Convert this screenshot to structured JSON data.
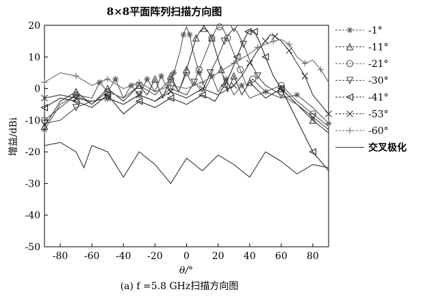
{
  "chart_data": {
    "type": "line",
    "title": "8×8平面阵列扫描方向图",
    "caption": "(a) f =5.8 GHz扫描方向图",
    "xlabel": "θ/°",
    "ylabel": "增益/dBi",
    "xlim": [
      -90,
      90
    ],
    "ylim": [
      -50,
      20
    ],
    "xticks": [
      -80,
      -60,
      -40,
      -20,
      0,
      20,
      40,
      60,
      80
    ],
    "yticks": [
      -50,
      -40,
      -30,
      -20,
      -10,
      0,
      10,
      20
    ],
    "grid": false,
    "legend_position": "right",
    "series": [
      {
        "name": "-1°",
        "marker": "asterisk",
        "color": "#555555",
        "x": [
          -90,
          -80,
          -70,
          -60,
          -55,
          -50,
          -45,
          -40,
          -35,
          -30,
          -25,
          -20,
          -16,
          -12,
          -8,
          -4,
          -2,
          0,
          2,
          4,
          8,
          12,
          16,
          20,
          25,
          30,
          35,
          40,
          50,
          60,
          70,
          80,
          90
        ],
        "y": [
          -13,
          -5,
          -2,
          -3,
          2,
          -1,
          3,
          -3,
          1,
          -2,
          3,
          -1,
          4,
          0,
          5,
          12,
          17,
          19.5,
          17,
          12,
          5,
          0,
          4,
          -1,
          3,
          -2,
          1,
          -3,
          -1,
          -3,
          -2,
          -6,
          -11
        ]
      },
      {
        "name": "-11°",
        "marker": "triangle-up",
        "color": "#333333",
        "x": [
          -90,
          -80,
          -70,
          -60,
          -50,
          -40,
          -30,
          -25,
          -20,
          -15,
          -10,
          -5,
          0,
          3,
          6,
          9,
          11,
          13,
          16,
          19,
          22,
          26,
          30,
          35,
          40,
          50,
          60,
          70,
          80,
          90
        ],
        "y": [
          -12,
          -4,
          -1,
          -5,
          0,
          -4,
          1,
          -2,
          3,
          -3,
          4,
          -1,
          6,
          11,
          16,
          18.5,
          19,
          18.5,
          16,
          11,
          6,
          -1,
          4,
          -2,
          2,
          -3,
          0,
          -5,
          -10,
          -14
        ]
      },
      {
        "name": "-21°",
        "marker": "circle",
        "color": "#555555",
        "x": [
          -90,
          -80,
          -70,
          -60,
          -50,
          -40,
          -30,
          -20,
          -10,
          -5,
          0,
          4,
          8,
          12,
          16,
          19,
          21,
          23,
          26,
          30,
          34,
          38,
          42,
          50,
          60,
          70,
          80,
          90
        ],
        "y": [
          -10,
          -6,
          -2,
          -5,
          -1,
          -3,
          1,
          -2,
          3,
          -1,
          5,
          1,
          6,
          11,
          16,
          19,
          19.5,
          19,
          16,
          11,
          6,
          1,
          3,
          -1,
          1,
          -4,
          -8,
          -12
        ]
      },
      {
        "name": "-30°",
        "marker": "triangle-down",
        "color": "#444444",
        "x": [
          -90,
          -80,
          -70,
          -60,
          -50,
          -40,
          -30,
          -20,
          -10,
          0,
          5,
          10,
          15,
          20,
          24,
          28,
          30,
          32,
          36,
          40,
          45,
          50,
          60,
          70,
          80,
          90
        ],
        "y": [
          -11,
          -10,
          -6,
          -4,
          -3,
          -5,
          -2,
          -4,
          0,
          -2,
          2,
          -1,
          5,
          10,
          15,
          18,
          19,
          18,
          14,
          9,
          4,
          1,
          -2,
          -5,
          -9,
          -13
        ]
      },
      {
        "name": "-41°",
        "marker": "triangle-left",
        "color": "#222222",
        "x": [
          -90,
          -80,
          -70,
          -60,
          -50,
          -40,
          -30,
          -20,
          -10,
          0,
          10,
          18,
          24,
          28,
          32,
          36,
          39,
          41,
          43,
          46,
          50,
          55,
          60,
          70,
          80,
          90
        ],
        "y": [
          -6,
          -3,
          -4,
          -6,
          -2,
          -8,
          -4,
          -6,
          -3,
          -5,
          -2,
          -4,
          1,
          5,
          10,
          15,
          18,
          18.5,
          18,
          15,
          10,
          4,
          0,
          -10,
          -20,
          -26
        ]
      },
      {
        "name": "-53°",
        "marker": "x",
        "color": "#333333",
        "x": [
          -90,
          -80,
          -70,
          -60,
          -50,
          -40,
          -30,
          -20,
          -10,
          0,
          10,
          20,
          30,
          35,
          40,
          45,
          50,
          53,
          56,
          60,
          65,
          70,
          75,
          80,
          90
        ],
        "y": [
          -3,
          -2,
          -3,
          -4,
          -3,
          -5,
          -2,
          -4,
          -1,
          -3,
          0,
          -2,
          1,
          4,
          8,
          12,
          15,
          17,
          16.5,
          15,
          12,
          8,
          4,
          -2,
          -8
        ]
      },
      {
        "name": "-60°",
        "marker": "plus",
        "color": "#666666",
        "x": [
          -90,
          -80,
          -70,
          -60,
          -50,
          -40,
          -30,
          -20,
          -10,
          0,
          10,
          20,
          30,
          40,
          45,
          50,
          55,
          60,
          65,
          70,
          75,
          80,
          85,
          90
        ],
        "y": [
          2,
          5,
          4,
          1,
          3,
          0,
          2,
          -1,
          1,
          0,
          2,
          5,
          8,
          11,
          13,
          14,
          15,
          15.5,
          14,
          10,
          8,
          9,
          6,
          2
        ]
      },
      {
        "name": "交叉极化",
        "marker": "none",
        "color": "#333333",
        "x": [
          -90,
          -80,
          -70,
          -65,
          -60,
          -50,
          -40,
          -30,
          -20,
          -10,
          0,
          10,
          20,
          30,
          40,
          50,
          60,
          70,
          80,
          90
        ],
        "y": [
          -18,
          -17,
          -20,
          -25,
          -18,
          -20,
          -28,
          -20,
          -24,
          -30,
          -22,
          -26,
          -21,
          -24,
          -28,
          -20,
          -23,
          -27,
          -24,
          -25
        ]
      }
    ]
  }
}
